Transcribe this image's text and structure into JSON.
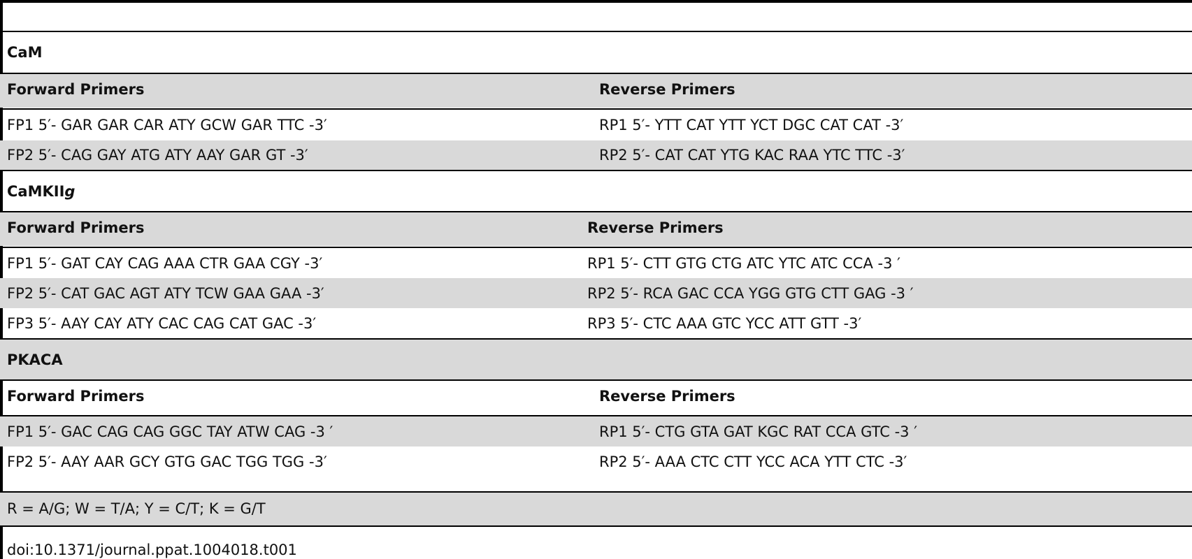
{
  "table": {
    "sections": [
      {
        "title": "CaM",
        "forward_header": "Forward Primers",
        "reverse_header": "Reverse Primers",
        "rows": [
          {
            "forward": "FP1 5′- GAR GAR CAR ATY GCW GAR TTC -3′",
            "reverse": "RP1 5′- YTT CAT YTT YCT DGC CAT CAT -3′"
          },
          {
            "forward": "FP2 5′- CAG GAY ATG ATY AAY GAR GT -3′",
            "reverse": "RP2 5′- CAT CAT YTG KAC RAA YTC TTC -3′"
          }
        ]
      },
      {
        "title": "CaMKII",
        "title_suffix": "g",
        "forward_header": "Forward Primers",
        "reverse_header": "Reverse Primers",
        "rows": [
          {
            "forward": "FP1 5′- GAT CAY CAG AAA CTR GAA CGY -3′",
            "reverse": "RP1 5′- CTT GTG CTG ATC YTC ATC CCA -3 ′"
          },
          {
            "forward": "FP2 5′- CAT GAC AGT ATY TCW GAA GAA -3′",
            "reverse": "RP2 5′- RCA GAC CCA YGG GTG CTT GAG -3 ′"
          },
          {
            "forward": "FP3 5′- AAY CAY ATY CAC CAG CAT GAC -3′",
            "reverse": "RP3 5′- CTC AAA GTC YCC ATT GTT -3′"
          }
        ]
      },
      {
        "title": "PKACA",
        "forward_header": "Forward Primers",
        "reverse_header": "Reverse Primers",
        "rows": [
          {
            "forward": "FP1 5′- GAC CAG CAG GGC TAY ATW CAG -3 ′",
            "reverse": "RP1 5′- CTG GTA GAT KGC RAT CCA GTC -3 ′"
          },
          {
            "forward": "FP2 5′- AAY AAR GCY GTG GAC TGG TGG -3′",
            "reverse": "RP2 5′- AAA CTC CTT YCC ACA YTT CTC -3′"
          }
        ]
      }
    ],
    "footnote": "R = A/G; W = T/A; Y = C/T; K = G/T"
  },
  "doi": "doi:10.1371/journal.ppat.1004018.t001"
}
